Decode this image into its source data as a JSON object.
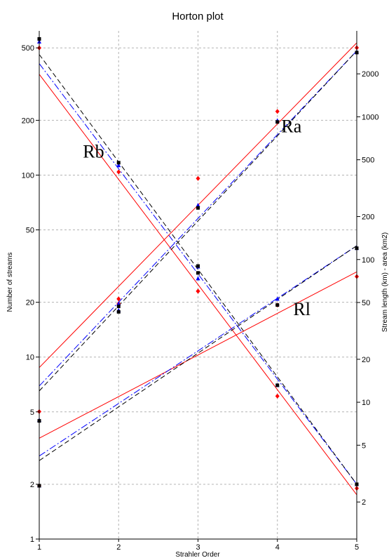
{
  "chart_data": {
    "type": "scatter",
    "title": "Horton plot",
    "xlabel": "Strahler Order",
    "ylabel": "Number of streams",
    "y2label": "Stream length (km) - area (km2)",
    "x_ticks": [
      "1",
      "2",
      "3",
      "4",
      "5"
    ],
    "y_ticks": [
      "1",
      "2",
      "5",
      "10",
      "20",
      "50",
      "100",
      "200",
      "500"
    ],
    "y2_ticks": [
      "2",
      "5",
      "10",
      "20",
      "50",
      "100",
      "200",
      "500",
      "1000",
      "2000"
    ],
    "xlim": [
      1,
      5
    ],
    "ylim": [
      1,
      620
    ],
    "y2lim": [
      1.1,
      4000
    ],
    "y_scale": "log",
    "y2_scale": "log",
    "grid": true,
    "annotations": [
      {
        "text": "Rb",
        "x": 1.55,
        "y": 125
      },
      {
        "text": "Ra",
        "x": 4.05,
        "y": 172
      },
      {
        "text": "Rl",
        "x": 4.2,
        "y": 17
      }
    ],
    "series": [
      {
        "group": "bifurcation",
        "axis": "left",
        "color": "#ff0000",
        "marker": "diamond",
        "x": [
          1,
          2,
          3,
          4,
          5
        ],
        "values": [
          500,
          104,
          23,
          6.1,
          1.9
        ]
      },
      {
        "group": "bifurcation",
        "axis": "left",
        "color": "#0000ff",
        "marker": "triangle",
        "x": [
          1,
          2,
          3,
          4,
          5
        ],
        "values": [
          540,
          113,
          27,
          7.0,
          2.0
        ]
      },
      {
        "group": "bifurcation",
        "axis": "left",
        "color": "#000000",
        "marker": "square",
        "x": [
          1,
          2,
          3,
          4,
          5
        ],
        "values": [
          560,
          117,
          29,
          7.0,
          2.0
        ]
      },
      {
        "group": "area",
        "axis": "right",
        "color": "#ff0000",
        "marker": "diamond",
        "x": [
          1,
          2,
          3,
          4,
          5
        ],
        "values": [
          8.6,
          49,
          370,
          1090,
          3050
        ]
      },
      {
        "group": "area",
        "axis": "right",
        "color": "#0000ff",
        "marker": "triangle",
        "x": [
          1,
          2,
          3,
          4,
          5
        ],
        "values": [
          7.5,
          44,
          240,
          940,
          2850
        ]
      },
      {
        "group": "area",
        "axis": "right",
        "color": "#000000",
        "marker": "square",
        "x": [
          1,
          2,
          3,
          4,
          5
        ],
        "values": [
          7.4,
          43,
          230,
          920,
          2820
        ]
      },
      {
        "group": "length",
        "axis": "right",
        "color": "#ff0000",
        "marker": "diamond",
        "x": [
          1,
          2,
          3,
          4,
          5
        ],
        "values": [
          2.6,
          53,
          60,
          48,
          76
        ]
      },
      {
        "group": "length",
        "axis": "right",
        "color": "#0000ff",
        "marker": "triangle",
        "x": [
          1,
          2,
          3,
          4,
          5
        ],
        "values": [
          2.6,
          49,
          89,
          53,
          120
        ]
      },
      {
        "group": "length",
        "axis": "right",
        "color": "#000000",
        "marker": "square",
        "x": [
          1,
          2,
          3,
          4,
          5
        ],
        "values": [
          2.6,
          47,
          90,
          48,
          120
        ]
      }
    ],
    "fits": [
      {
        "group": "bifurcation",
        "axis": "left",
        "color": "#ff0000",
        "style": "solid",
        "x": [
          1,
          5
        ],
        "values": [
          358,
          1.75
        ]
      },
      {
        "group": "bifurcation",
        "axis": "left",
        "color": "#0000ff",
        "style": "dashdot",
        "x": [
          1,
          5
        ],
        "values": [
          410,
          2.0
        ]
      },
      {
        "group": "bifurcation",
        "axis": "left",
        "color": "#000000",
        "style": "dash",
        "x": [
          1,
          5
        ],
        "values": [
          460,
          2.0
        ]
      },
      {
        "group": "area",
        "axis": "right",
        "color": "#ff0000",
        "style": "solid",
        "x": [
          1,
          5
        ],
        "values": [
          17.5,
          3300
        ]
      },
      {
        "group": "area",
        "axis": "right",
        "color": "#0000ff",
        "style": "dashdot",
        "x": [
          1,
          5
        ],
        "values": [
          13.0,
          2900
        ]
      },
      {
        "group": "area",
        "axis": "right",
        "color": "#000000",
        "style": "dash",
        "x": [
          1,
          5
        ],
        "values": [
          12.0,
          2900
        ]
      },
      {
        "group": "length",
        "axis": "right",
        "color": "#ff0000",
        "style": "solid",
        "x": [
          1,
          5
        ],
        "values": [
          5.6,
          82
        ]
      },
      {
        "group": "length",
        "axis": "right",
        "color": "#0000ff",
        "style": "dashdot",
        "x": [
          1,
          5
        ],
        "values": [
          4.2,
          125
        ]
      },
      {
        "group": "length",
        "axis": "right",
        "color": "#000000",
        "style": "dash",
        "x": [
          1,
          5
        ],
        "values": [
          3.9,
          125
        ]
      }
    ]
  }
}
